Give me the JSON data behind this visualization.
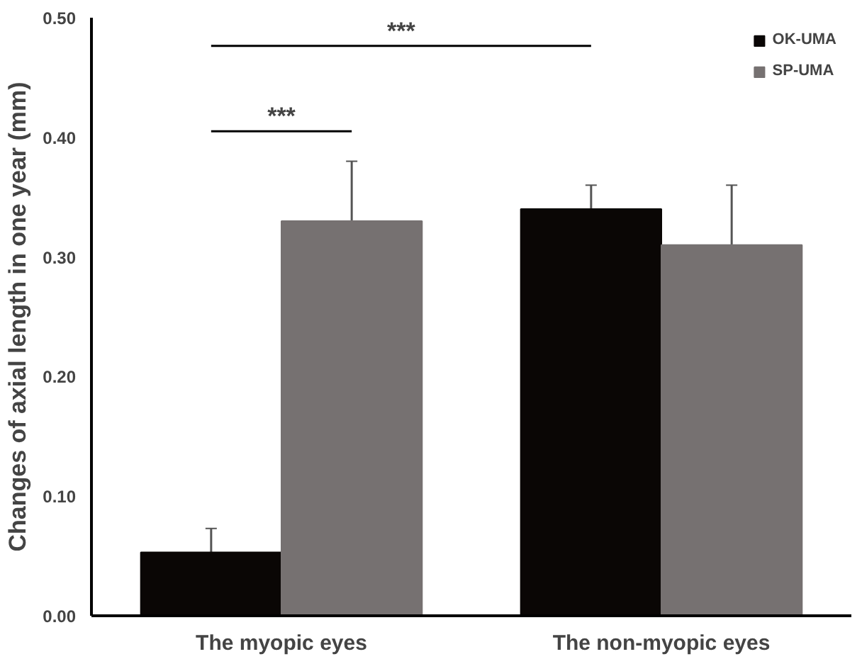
{
  "chart_data": {
    "type": "bar",
    "ylabel": "Changes of axial length in one year (mm)",
    "categories": [
      "The myopic eyes",
      "The non-myopic eyes"
    ],
    "series": [
      {
        "name": "OK-UMA",
        "color": "#0a0605",
        "values": [
          0.053,
          0.34
        ],
        "errors": [
          0.02,
          0.02
        ]
      },
      {
        "name": "SP-UMA",
        "color": "#767171",
        "values": [
          0.33,
          0.31
        ],
        "errors": [
          0.05,
          0.05
        ]
      }
    ],
    "ylim": [
      0,
      0.5
    ],
    "yticks": [
      {
        "value": 0,
        "label": "0.00"
      },
      {
        "value": 0.1,
        "label": "0.10"
      },
      {
        "value": 0.2,
        "label": "0.20"
      },
      {
        "value": 0.3,
        "label": "0.30"
      },
      {
        "value": 0.4,
        "label": "0.40"
      },
      {
        "value": 0.5,
        "label": "0.50"
      }
    ],
    "grid": false,
    "legend": "top right",
    "annotations": [
      "***",
      "***"
    ]
  }
}
